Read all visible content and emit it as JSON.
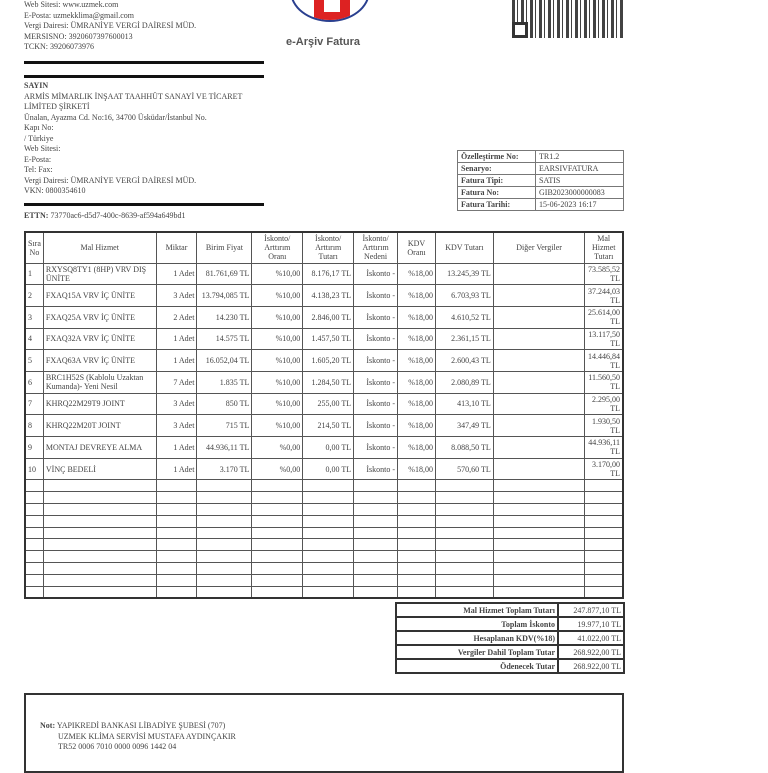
{
  "seller": {
    "web": "Web Sitesi: www.uzmek.com",
    "email": "E-Posta: uzmekklima@gmail.com",
    "tax_office": "Vergi Dairesi: ÜMRANİYE VERGİ DAİRESİ MÜD.",
    "mersis": "MERSISNO: 3920607397600013",
    "tckn": "TCKN: 39206073976"
  },
  "title": "e-Arşiv Fatura",
  "buyer": {
    "heading": "SAYIN",
    "name1": "ARMİS MİMARLIK İNŞAAT TAAHHÜT SANAYİ VE TİCARET",
    "name2": "LİMİTED ŞİRKETİ",
    "address": "Ünalan, Ayazma Cd. No:16, 34700 Üsküdar/İstanbul  No.",
    "door": "Kapı No:",
    "country": " /  Türkiye",
    "web": "Web Sitesi:",
    "email": "E-Posta:",
    "tel": "Tel:  Fax:",
    "tax_office": "Vergi Dairesi: ÜMRANİYE VERGİ DAİRESİ MÜD.",
    "vkn": "VKN: 0800354610"
  },
  "ettn_label": "ETTN:",
  "ettn": "73770ac6-d5d7-400c-8639-af594a649bd1",
  "info": [
    [
      "Özelleştirme No:",
      "TR1.2"
    ],
    [
      "Senaryo:",
      "EARSIVFATURA"
    ],
    [
      "Fatura Tipi:",
      "SATIS"
    ],
    [
      "Fatura No:",
      "GIB2023000000083"
    ],
    [
      "Fatura Tarihi:",
      "15-06-2023 16:17"
    ]
  ],
  "columns": [
    "Sıra No",
    "Mal Hizmet",
    "Miktar",
    "Birim Fiyat",
    "İskonto/ Arttırım Oranı",
    "İskonto/ Arttırım Tutarı",
    "İskonto/ Arttırım Nedeni",
    "KDV Oranı",
    "KDV Tutarı",
    "Diğer Vergiler",
    "Mal Hizmet Tutarı"
  ],
  "rows": [
    [
      "1",
      "RXYSQ8TY1 (8HP) VRV DIŞ ÜNİTE",
      "1 Adet",
      "81.761,69 TL",
      "%10,00",
      "8.176,17 TL",
      "İskonto -",
      "%18,00",
      "13.245,39 TL",
      "",
      "73.585,52 TL"
    ],
    [
      "2",
      "FXAQ15A VRV İÇ ÜNİTE",
      "3 Adet",
      "13.794,085 TL",
      "%10,00",
      "4.138,23 TL",
      "İskonto -",
      "%18,00",
      "6.703,93 TL",
      "",
      "37.244,03 TL"
    ],
    [
      "3",
      "FXAQ25A VRV İÇ ÜNİTE",
      "2 Adet",
      "14.230 TL",
      "%10,00",
      "2.846,00 TL",
      "İskonto -",
      "%18,00",
      "4.610,52 TL",
      "",
      "25.614,00 TL"
    ],
    [
      "4",
      "FXAQ32A VRV İÇ ÜNİTE",
      "1 Adet",
      "14.575 TL",
      "%10,00",
      "1.457,50 TL",
      "İskonto -",
      "%18,00",
      "2.361,15 TL",
      "",
      "13.117,50 TL"
    ],
    [
      "5",
      "FXAQ63A VRV İÇ ÜNİTE",
      "1 Adet",
      "16.052,04 TL",
      "%10,00",
      "1.605,20 TL",
      "İskonto -",
      "%18,00",
      "2.600,43 TL",
      "",
      "14.446,84 TL"
    ],
    [
      "6",
      "BRC1H52S (Kablolu Uzaktan Kumanda)- Yeni Nesil",
      "7 Adet",
      "1.835 TL",
      "%10,00",
      "1.284,50 TL",
      "İskonto -",
      "%18,00",
      "2.080,89 TL",
      "",
      "11.560,50 TL"
    ],
    [
      "7",
      "KHRQ22M29T9 JOINT",
      "3 Adet",
      "850 TL",
      "%10,00",
      "255,00 TL",
      "İskonto -",
      "%18,00",
      "413,10 TL",
      "",
      "2.295,00 TL"
    ],
    [
      "8",
      "KHRQ22M20T JOINT",
      "3 Adet",
      "715 TL",
      "%10,00",
      "214,50 TL",
      "İskonto -",
      "%18,00",
      "347,49 TL",
      "",
      "1.930,50 TL"
    ],
    [
      "9",
      "MONTAJ DEVREYE ALMA",
      "1 Adet",
      "44.936,11 TL",
      "%0,00",
      "0,00 TL",
      "İskonto -",
      "%18,00",
      "8.088,50 TL",
      "",
      "44.936,11 TL"
    ],
    [
      "10",
      "VİNÇ BEDELİ",
      "1 Adet",
      "3.170 TL",
      "%0,00",
      "0,00 TL",
      "İskonto -",
      "%18,00",
      "570,60 TL",
      "",
      "3.170,00 TL"
    ]
  ],
  "totals": [
    [
      "Mal Hizmet Toplam Tutarı",
      "247.877,10 TL"
    ],
    [
      "Toplam İskonto",
      "19.977,10 TL"
    ],
    [
      "Hesaplanan KDV(%18)",
      "41.022,00 TL"
    ],
    [
      "Vergiler Dahil Toplam Tutar",
      "268.922,00 TL"
    ],
    [
      "Ödenecek Tutar",
      "268.922,00 TL"
    ]
  ],
  "note": {
    "label": "Not:",
    "line1": "YAPIKREDİ BANKASI LİBADİYE ŞUBESİ (707)",
    "line2": "UZMEK KLİMA SERVİSİ MUSTAFA AYDINÇAKIR",
    "line3": "TR52 0006 7010 0000 0096 1442 04"
  }
}
